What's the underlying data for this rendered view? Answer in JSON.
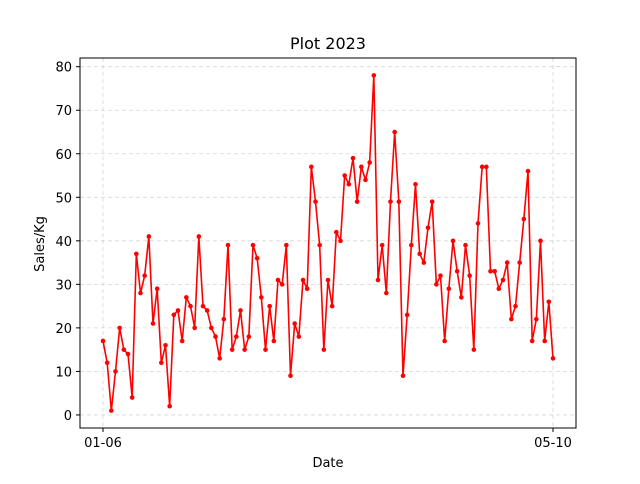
{
  "chart_data": {
    "type": "line",
    "title": "Plot 2023",
    "xlabel": "Date",
    "ylabel": "Sales/Kg",
    "x_tick_labels": [
      "01-06",
      "05-10"
    ],
    "y_ticks": [
      0,
      10,
      20,
      30,
      40,
      50,
      60,
      70,
      80
    ],
    "ylim": [
      -3,
      82
    ],
    "grid": true,
    "line_color": "#ff0000",
    "marker": "circle",
    "series": [
      {
        "values": [
          17,
          12,
          1,
          10,
          20,
          15,
          14,
          4,
          37,
          28,
          32,
          41,
          21,
          29,
          12,
          16,
          2,
          23,
          24,
          17,
          27,
          25,
          20,
          41,
          25,
          24,
          20,
          18,
          13,
          22,
          39,
          15,
          18,
          24,
          15,
          18,
          39,
          36,
          27,
          15,
          25,
          17,
          31,
          30,
          39,
          9,
          21,
          18,
          31,
          29,
          57,
          49,
          39,
          15,
          31,
          25,
          42,
          40,
          55,
          53,
          59,
          49,
          57,
          54,
          58,
          78,
          31,
          39,
          28,
          49,
          65,
          49,
          9,
          23,
          39,
          53,
          37,
          35,
          43,
          49,
          30,
          32,
          17,
          29,
          40,
          33,
          27,
          39,
          32,
          15,
          44,
          57,
          57,
          33,
          33,
          29,
          31,
          35,
          22,
          25,
          35,
          45,
          56,
          17,
          22,
          40,
          17,
          26,
          13
        ]
      }
    ]
  }
}
